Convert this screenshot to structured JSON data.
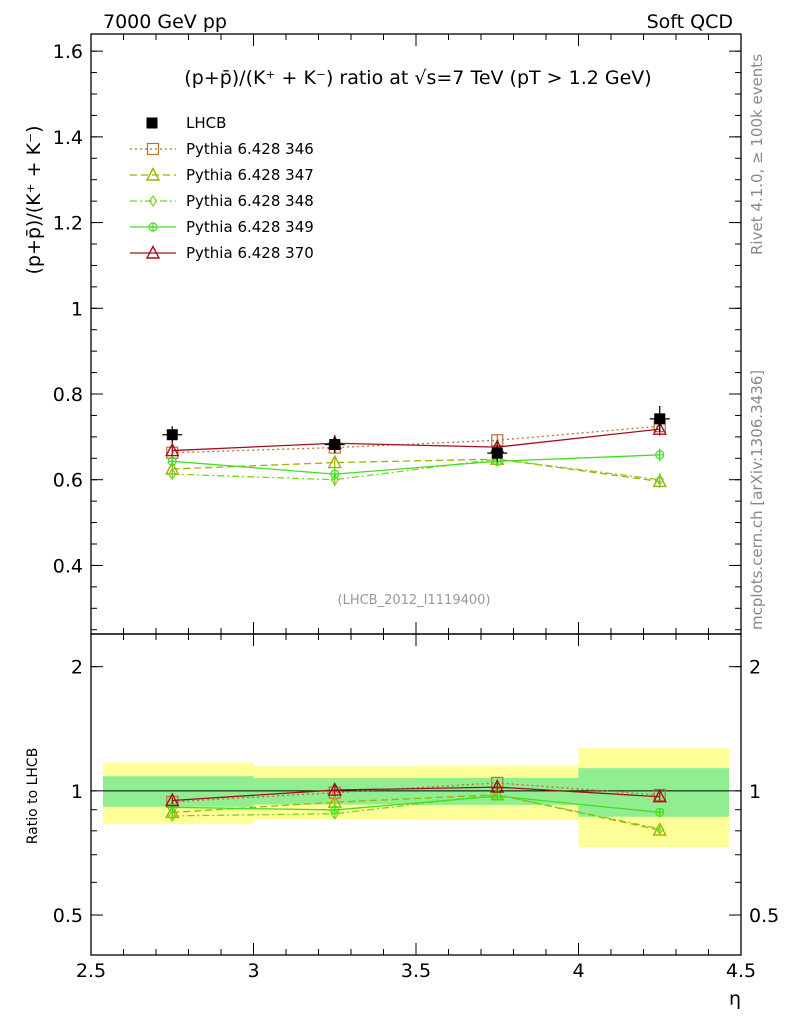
{
  "header": {
    "left": "7000 GeV pp",
    "right": "Soft QCD"
  },
  "side": {
    "rivet": "Rivet 4.1.0, ≥ 100k events",
    "mcplots": "mcplots.cern.ch [arXiv:1306.3436]"
  },
  "chart_data": {
    "type": "line",
    "title": "(p+p̄)/(K⁺ + K⁻) ratio at √s=7 TeV (pT > 1.2 GeV)",
    "ylabel": "(p+p̄)/(K⁺ + K⁻)",
    "xlabel": "η",
    "ratio_ylabel": "Ratio to LHCB",
    "watermark": "(LHCB_2012_I1119400)",
    "xlim": [
      2.5,
      4.5
    ],
    "ylim": [
      0.24,
      1.64
    ],
    "ratio_ylim": [
      0.4,
      2.4
    ],
    "x_ticks": [
      "2.5",
      "3",
      "3.5",
      "4",
      "4.5"
    ],
    "y_ticks": [
      "0.4",
      "0.6",
      "0.8",
      "1",
      "1.2",
      "1.4",
      "1.6"
    ],
    "ratio_ticks": [
      "0.5",
      "1",
      "2"
    ],
    "x": [
      2.75,
      3.25,
      3.75,
      4.25
    ],
    "bin_edges": [
      2.5,
      3.0,
      3.5,
      4.0,
      4.5
    ],
    "data": {
      "name": "LHCB",
      "values": [
        0.705,
        0.682,
        0.662,
        0.742
      ],
      "errors": [
        0.02,
        0.02,
        0.02,
        0.03
      ],
      "band_inner": [
        0.06,
        0.05,
        0.05,
        0.1
      ],
      "band_outer": [
        0.12,
        0.1,
        0.1,
        0.2
      ]
    },
    "series": [
      {
        "name": "Pythia 6.428 346",
        "values": [
          0.663,
          0.675,
          0.692,
          0.725
        ],
        "errors": [
          0.012,
          0.012,
          0.015,
          0.015
        ],
        "color": "#b87333",
        "dash": "2,3",
        "marker": "square"
      },
      {
        "name": "Pythia 6.428 347",
        "values": [
          0.625,
          0.64,
          0.648,
          0.596
        ],
        "errors": [
          0.012,
          0.012,
          0.012,
          0.015
        ],
        "color": "#a0b000",
        "dash": "7,4",
        "marker": "triangle"
      },
      {
        "name": "Pythia 6.428 348",
        "values": [
          0.613,
          0.6,
          0.648,
          0.6
        ],
        "errors": [
          0.012,
          0.015,
          0.012,
          0.015
        ],
        "color": "#80d020",
        "dash": "7,3,2,3",
        "marker": "diamond"
      },
      {
        "name": "Pythia 6.428 349",
        "values": [
          0.643,
          0.613,
          0.643,
          0.658
        ],
        "errors": [
          0.012,
          0.015,
          0.012,
          0.015
        ],
        "color": "#40e020",
        "dash": "",
        "marker": "cross"
      },
      {
        "name": "Pythia 6.428 370",
        "values": [
          0.668,
          0.685,
          0.676,
          0.718
        ],
        "errors": [
          0.012,
          0.02,
          0.015,
          0.015
        ],
        "color": "#a01020",
        "dash": "",
        "marker": "triangle"
      }
    ]
  },
  "colors": {
    "band_inner": "#90ee90",
    "band_outer": "#ffff99",
    "axis": "#000000"
  }
}
